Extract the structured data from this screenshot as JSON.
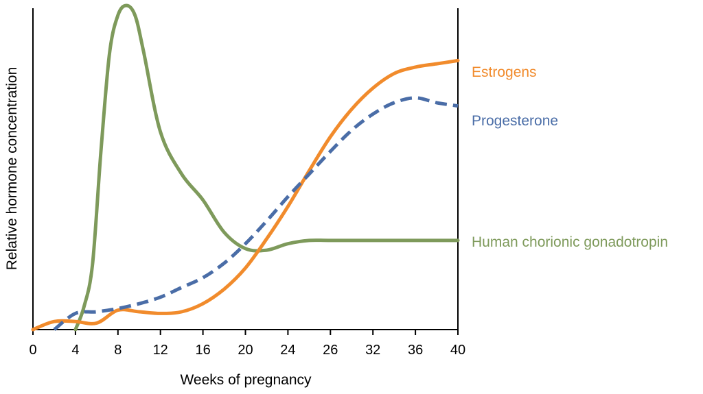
{
  "chart_data": {
    "type": "line",
    "xlabel": "Weeks of pregnancy",
    "ylabel": "Relative hormone concentration",
    "categories": [
      "0",
      "4",
      "8",
      "12",
      "16",
      "20",
      "24",
      "26",
      "32",
      "36",
      "40"
    ],
    "ylim": [
      0,
      100
    ],
    "grid": false,
    "legend": "right-inline",
    "series": [
      {
        "name": "Estrogens",
        "color": "#F18B2C",
        "dash": "solid",
        "x": [
          0,
          0.5,
          1,
          1.5,
          2,
          2.5,
          3,
          3.5,
          4,
          4.5,
          5,
          5.5,
          6,
          6.5,
          7,
          7.5,
          8,
          8.5,
          9,
          9.5,
          10
        ],
        "y": [
          0,
          2.5,
          2.5,
          2,
          6,
          5.5,
          5,
          5.5,
          8,
          12.5,
          19,
          28,
          38,
          49,
          59.5,
          68,
          74.5,
          79,
          81,
          82,
          83
        ]
      },
      {
        "name": "Progesterone",
        "color": "#4A6DA7",
        "dash": "dashed",
        "x": [
          0.5,
          1,
          1.5,
          2,
          2.5,
          3,
          3.5,
          4,
          4.5,
          5,
          5.5,
          6,
          6.5,
          7,
          7.5,
          8,
          8.5,
          9,
          9.5,
          10
        ],
        "y": [
          0,
          5,
          5.5,
          6.5,
          8,
          10,
          13,
          16,
          20.5,
          26.5,
          33.5,
          41,
          48,
          55,
          61.5,
          66.5,
          70,
          71.5,
          70,
          69
        ]
      },
      {
        "name": "Human chorionic gonadotropin",
        "color": "#7E9A5B",
        "dash": "solid",
        "x": [
          1,
          1.2,
          1.4,
          1.6,
          1.8,
          2,
          2.2,
          2.4,
          2.6,
          3,
          3.5,
          4,
          4.5,
          5,
          5.5,
          6,
          6.5,
          7,
          8,
          9,
          10
        ],
        "y": [
          0,
          7,
          20,
          55,
          85,
          97,
          100,
          97,
          86,
          61,
          48,
          40,
          30,
          25,
          24.5,
          26.5,
          27.5,
          27.5,
          27.5,
          27.5,
          27.5
        ]
      }
    ]
  }
}
